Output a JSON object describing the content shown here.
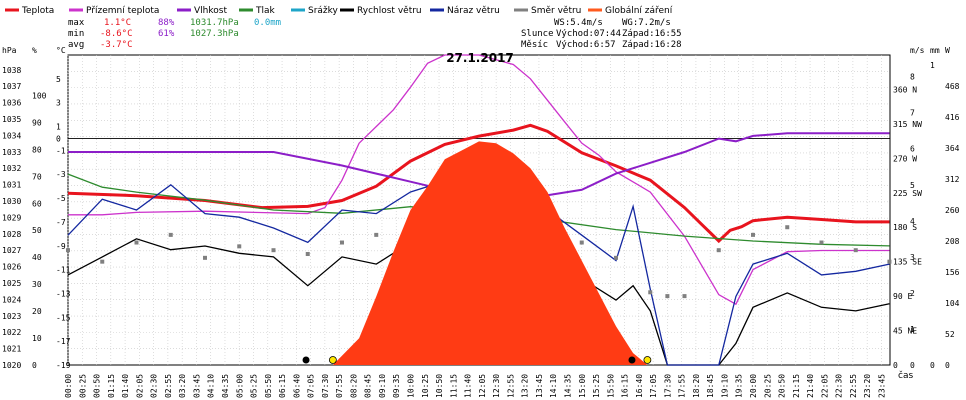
{
  "legend": [
    {
      "label": "Teplota",
      "color": "#e8141e"
    },
    {
      "label": "Přízemní teplota",
      "color": "#cc33cc"
    },
    {
      "label": "Vlhkost",
      "color": "#8c1ec8"
    },
    {
      "label": "Tlak",
      "color": "#2e8b2e"
    },
    {
      "label": "Srážky",
      "color": "#1ea5c8"
    },
    {
      "label": "Rychlost větru",
      "color": "#000000"
    },
    {
      "label": "Náraz větru",
      "color": "#1428a0"
    },
    {
      "label": "Směr větru",
      "color": "#808080"
    },
    {
      "label": "Globální záření",
      "color": "#ff5a1e"
    }
  ],
  "stats": {
    "max_label": "max",
    "max_temp": "1.1°C",
    "max_hum": "88%",
    "max_press": "1031.7hPa",
    "max_rain": "0.0mm",
    "min_label": "min",
    "min_temp": "-8.6°C",
    "min_hum": "61%",
    "min_press": "1027.3hPa",
    "avg_label": "avg",
    "avg_temp": "-3.7°C"
  },
  "wind_stats": {
    "ws": "WS:5.4m/s",
    "wg": "WG:7.2m/s"
  },
  "sun": {
    "label": "Slunce",
    "rise": "Východ:07:44",
    "set": "Západ:16:55"
  },
  "moon": {
    "label": "Měsíc",
    "rise": "Východ:6:57",
    "set": "Západ:16:28"
  },
  "chart_data": {
    "type": "line",
    "title": "27.1.2017",
    "x_axis_label": "čas",
    "x_ticks": [
      "00:00",
      "00:25",
      "00:50",
      "01:15",
      "01:40",
      "02:05",
      "02:30",
      "02:55",
      "03:20",
      "03:45",
      "04:10",
      "04:35",
      "05:00",
      "05:25",
      "05:50",
      "06:15",
      "06:40",
      "07:05",
      "07:30",
      "07:55",
      "08:20",
      "08:45",
      "09:10",
      "09:35",
      "10:00",
      "10:25",
      "10:50",
      "11:15",
      "11:40",
      "12:05",
      "12:30",
      "12:55",
      "13:20",
      "13:45",
      "14:10",
      "14:35",
      "15:00",
      "15:25",
      "15:50",
      "16:15",
      "16:40",
      "17:05",
      "17:30",
      "17:55",
      "18:20",
      "18:45",
      "19:10",
      "19:35",
      "20:00",
      "20:25",
      "20:50",
      "21:15",
      "21:40",
      "22:05",
      "22:30",
      "22:55",
      "23:20",
      "23:45"
    ],
    "axes_left": [
      {
        "unit": "hPa",
        "color": "#2e8b2e",
        "ticks": [
          "1038",
          "1037",
          "1036",
          "1035",
          "1034",
          "1033",
          "1032",
          "1031",
          "1030",
          "1029",
          "1028",
          "1027",
          "1026",
          "1025",
          "1024",
          "1023",
          "1022",
          "1021",
          "1020"
        ]
      },
      {
        "unit": "%",
        "color": "#8c1ec8",
        "ticks": [
          "100",
          "90",
          "80",
          "70",
          "60",
          "50",
          "40",
          "30",
          "20",
          "10",
          "0"
        ]
      },
      {
        "unit": "°C",
        "color": "#e8141e",
        "ticks": [
          "5",
          "3",
          "1",
          "0",
          "-1",
          "-3",
          "-5",
          "-7",
          "-9",
          "-11",
          "-13",
          "-15",
          "-17",
          "-19"
        ]
      }
    ],
    "axes_right": [
      {
        "unit": "m/s",
        "color": "#000000",
        "ticks": [
          "8",
          "7",
          "6",
          "5",
          "4",
          "3",
          "2",
          "1",
          "0"
        ]
      },
      {
        "unit": "mm",
        "color": "#1ea5c8",
        "ticks": [
          "1",
          "0"
        ]
      },
      {
        "unit": "W",
        "color": "#ff5a1e",
        "ticks": [
          "468",
          "416",
          "364",
          "312",
          "260",
          "208",
          "156",
          "104",
          "52",
          "0"
        ]
      },
      {
        "unit": "dir",
        "color": "#000000",
        "ticks": [
          "360 N",
          "315 NW",
          "270 W",
          "225 SW",
          "180 S",
          "135 SE",
          "90 E",
          "45 NE",
          "0"
        ]
      }
    ],
    "series": [
      {
        "name": "Teplota",
        "unit": "°C",
        "x": [
          "00:00",
          "02:00",
          "04:00",
          "05:40",
          "07:00",
          "08:00",
          "09:00",
          "10:00",
          "11:00",
          "12:00",
          "13:00",
          "13:30",
          "14:00",
          "15:00",
          "16:00",
          "17:00",
          "18:00",
          "18:30",
          "19:00",
          "19:20",
          "19:40",
          "20:00",
          "21:00",
          "22:00",
          "23:00",
          "23:59"
        ],
        "y": [
          -4.6,
          -4.8,
          -5.2,
          -5.8,
          -5.7,
          -5.2,
          -4.0,
          -1.9,
          -0.5,
          0.2,
          0.7,
          1.1,
          0.6,
          -1.2,
          -2.3,
          -3.5,
          -5.8,
          -7.2,
          -8.6,
          -7.7,
          -7.4,
          -6.9,
          -6.6,
          -6.8,
          -7.0,
          -7.0
        ]
      },
      {
        "name": "Přízemní teplota",
        "unit": "°C",
        "x": [
          "00:00",
          "01:00",
          "02:00",
          "04:00",
          "07:00",
          "07:30",
          "08:00",
          "08:30",
          "09:00",
          "09:30",
          "10:00",
          "10:30",
          "11:00",
          "12:00",
          "13:00",
          "13:30",
          "14:00",
          "14:30",
          "15:00",
          "15:30",
          "16:00",
          "17:00",
          "18:00",
          "19:00",
          "19:30",
          "20:00",
          "21:00",
          "22:00",
          "23:59"
        ],
        "y": [
          -6.4,
          -6.4,
          -6.2,
          -6.1,
          -6.3,
          -5.8,
          -3.5,
          -0.4,
          1.0,
          2.4,
          4.3,
          6.3,
          7.0,
          7.0,
          6.2,
          5.0,
          3.2,
          1.4,
          -0.4,
          -1.4,
          -2.8,
          -4.5,
          -8.2,
          -13.1,
          -13.9,
          -11.0,
          -9.5,
          -9.4,
          -9.4
        ]
      },
      {
        "name": "Vlhkost",
        "unit": "%",
        "x": [
          "00:00",
          "02:00",
          "04:00",
          "06:00",
          "08:00",
          "09:00",
          "10:00",
          "11:00",
          "12:00",
          "13:00",
          "14:00",
          "15:00",
          "16:00",
          "17:00",
          "18:00",
          "19:00",
          "19:30",
          "20:00",
          "21:00",
          "22:00",
          "23:59"
        ],
        "y": [
          79,
          79,
          79,
          79,
          74,
          71,
          68,
          65,
          63,
          62,
          63,
          65,
          71,
          75,
          79,
          84,
          83,
          85,
          86,
          86,
          86
        ]
      },
      {
        "name": "Tlak",
        "unit": "hPa",
        "x": [
          "00:00",
          "01:00",
          "02:00",
          "04:00",
          "06:00",
          "08:00",
          "10:00",
          "12:00",
          "14:00",
          "16:00",
          "18:00",
          "20:00",
          "22:00",
          "23:59"
        ],
        "y": [
          1031.7,
          1030.9,
          1030.6,
          1030.1,
          1029.5,
          1029.3,
          1029.7,
          1029.3,
          1028.9,
          1028.3,
          1027.9,
          1027.6,
          1027.4,
          1027.3
        ]
      },
      {
        "name": "Rychlost větru",
        "unit": "m/s",
        "x": [
          "00:00",
          "01:00",
          "02:00",
          "03:00",
          "04:00",
          "05:00",
          "06:00",
          "07:00",
          "08:00",
          "09:00",
          "10:00",
          "11:00",
          "12:00",
          "13:00",
          "14:00",
          "15:00",
          "16:00",
          "16:30",
          "17:00",
          "17:30",
          "18:00",
          "18:30",
          "19:00",
          "19:30",
          "20:00",
          "21:00",
          "22:00",
          "23:00",
          "23:59"
        ],
        "y": [
          2.5,
          3.0,
          3.5,
          3.2,
          3.3,
          3.1,
          3.0,
          2.2,
          3.0,
          2.8,
          3.4,
          3.6,
          3.5,
          3.3,
          3.2,
          2.4,
          1.8,
          2.2,
          1.5,
          0,
          0,
          0,
          0,
          0.6,
          1.6,
          2.0,
          1.6,
          1.5,
          1.7
        ]
      },
      {
        "name": "Náraz větru",
        "unit": "m/s",
        "x": [
          "00:00",
          "01:00",
          "02:00",
          "03:00",
          "04:00",
          "05:00",
          "06:00",
          "07:00",
          "08:00",
          "09:00",
          "10:00",
          "11:00",
          "12:00",
          "13:00",
          "14:00",
          "15:00",
          "16:00",
          "16:30",
          "17:00",
          "17:30",
          "18:00",
          "18:30",
          "19:00",
          "19:30",
          "20:00",
          "21:00",
          "22:00",
          "23:00",
          "23:59"
        ],
        "y": [
          3.6,
          4.6,
          4.3,
          5.0,
          4.2,
          4.1,
          3.8,
          3.4,
          4.3,
          4.2,
          4.8,
          5.1,
          4.8,
          4.5,
          4.3,
          3.6,
          2.9,
          4.4,
          2.1,
          0,
          0,
          0,
          0,
          1.9,
          2.8,
          3.1,
          2.5,
          2.6,
          2.8
        ]
      },
      {
        "name": "Směr větru",
        "unit": "°",
        "x": [
          "00:00",
          "01:00",
          "02:00",
          "03:00",
          "04:00",
          "05:00",
          "06:00",
          "07:00",
          "08:00",
          "09:00",
          "10:00",
          "11:00",
          "12:00",
          "13:00",
          "14:00",
          "15:00",
          "16:00",
          "17:00",
          "17:30",
          "18:00",
          "19:00",
          "20:00",
          "21:00",
          "22:00",
          "23:00",
          "23:59"
        ],
        "y": [
          150,
          135,
          160,
          170,
          140,
          155,
          150,
          145,
          160,
          170,
          175,
          165,
          160,
          175,
          150,
          160,
          140,
          95,
          90,
          90,
          150,
          170,
          180,
          160,
          150,
          135
        ]
      },
      {
        "name": "Globální záření",
        "unit": "W",
        "x": [
          "07:44",
          "08:30",
          "09:00",
          "09:30",
          "10:00",
          "10:30",
          "11:00",
          "11:30",
          "12:00",
          "12:30",
          "13:00",
          "13:30",
          "14:00",
          "14:30",
          "15:00",
          "15:30",
          "16:00",
          "16:30",
          "16:55"
        ],
        "y": [
          0,
          45,
          115,
          190,
          260,
          300,
          345,
          360,
          375,
          372,
          355,
          330,
          290,
          230,
          175,
          120,
          65,
          20,
          0
        ]
      }
    ]
  }
}
